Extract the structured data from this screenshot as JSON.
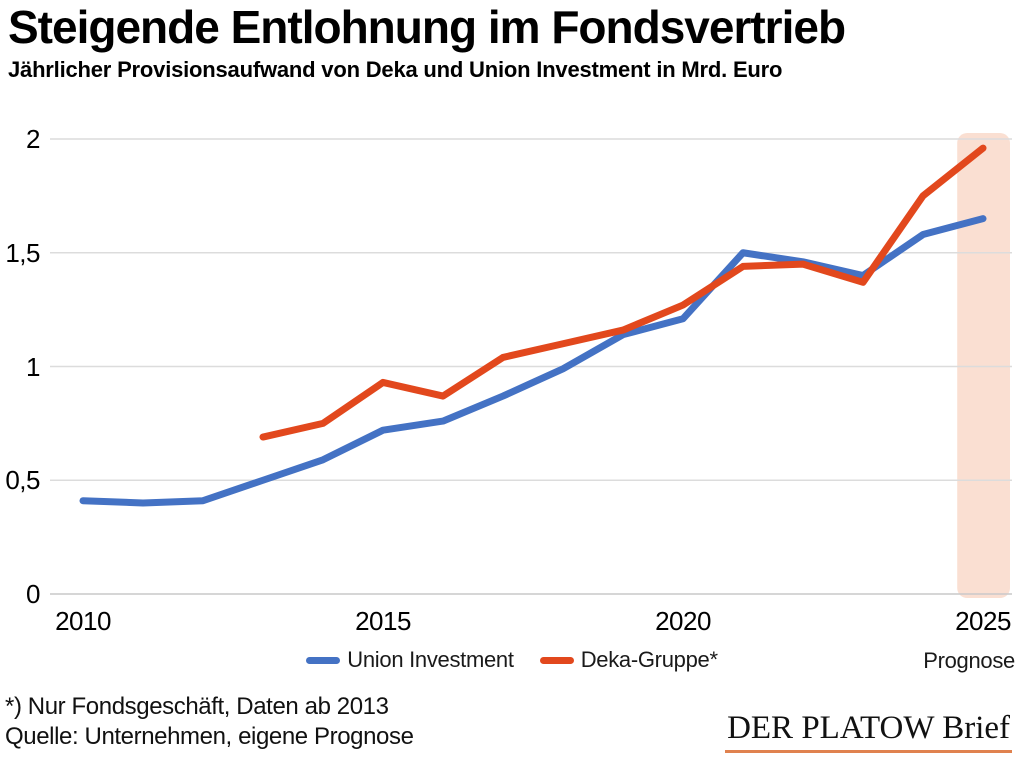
{
  "header": {
    "title": "Steigende Entlohnung im Fondsvertrieb",
    "subtitle": "Jährlicher Provisionsaufwand von Deka und Union Investment in Mrd. Euro"
  },
  "chart_data": {
    "type": "line",
    "title": "Steigende Entlohnung im Fondsvertrieb",
    "subtitle": "Jährlicher Provisionsaufwand von Deka und Union Investment in Mrd. Euro",
    "unit": "Mrd. Euro",
    "xlim": [
      2010,
      2025
    ],
    "ylim": [
      0,
      2
    ],
    "grid": true,
    "legend_position": "bottom",
    "yticks": [
      {
        "value": 2,
        "label": "2"
      },
      {
        "value": 1.5,
        "label": "1,5"
      },
      {
        "value": 1,
        "label": "1"
      },
      {
        "value": 0.5,
        "label": "0,5"
      },
      {
        "value": 0,
        "label": "0"
      }
    ],
    "xticks": [
      {
        "value": 2010,
        "label": "2010"
      },
      {
        "value": 2015,
        "label": "2015"
      },
      {
        "value": 2020,
        "label": "2020"
      },
      {
        "value": 2025,
        "label": "2025"
      }
    ],
    "series": [
      {
        "name": "Union Investment",
        "color": "#4472c4",
        "years": [
          2010,
          2011,
          2012,
          2013,
          2014,
          2015,
          2016,
          2017,
          2018,
          2019,
          2020,
          2021,
          2022,
          2023,
          2024,
          2025
        ],
        "values": [
          0.41,
          0.4,
          0.41,
          0.5,
          0.59,
          0.72,
          0.76,
          0.87,
          0.99,
          1.14,
          1.21,
          1.5,
          1.46,
          1.4,
          1.58,
          1.65
        ]
      },
      {
        "name": "Deka-Gruppe*",
        "color": "#e2481d",
        "years": [
          2013,
          2014,
          2015,
          2016,
          2017,
          2018,
          2019,
          2020,
          2021,
          2022,
          2023,
          2024,
          2025
        ],
        "values": [
          0.69,
          0.75,
          0.93,
          0.87,
          1.04,
          1.1,
          1.16,
          1.27,
          1.44,
          1.45,
          1.37,
          1.75,
          1.96
        ]
      }
    ],
    "forecast_band": {
      "label": "Prognose",
      "year_start": 2024.57,
      "year_end": 2025.45,
      "color": "#fadfd2"
    }
  },
  "footer": {
    "note1": "*) Nur Fondsgeschäft, Daten ab 2013",
    "note2": "Quelle: Unternehmen, eigene Prognose",
    "logo_text": "DER PLATOW Brief"
  }
}
